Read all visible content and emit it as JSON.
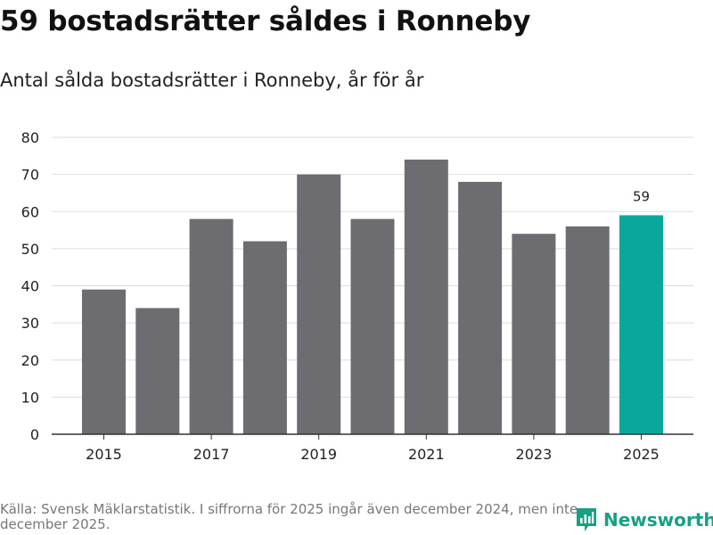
{
  "header": {
    "title": "59 bostadsrätter såldes i Ronneby",
    "subtitle": "Antal sålda bostadsrätter i Ronneby, år för år"
  },
  "footer": {
    "source": "Källa: Svensk Mäklarstatistik. I siffrorna för 2025 ingår även december 2024, men inte december 2025.",
    "brand": "Newsworthy",
    "brand_icon": "newsworthy-logo-icon"
  },
  "colors": {
    "bar": "#6d6c70",
    "highlight": "#0aa79c",
    "grid": "#dddddd",
    "axis": "#333333",
    "brand": "#16a085"
  },
  "chart_data": {
    "type": "bar",
    "title": "59 bostadsrätter såldes i Ronneby",
    "subtitle": "Antal sålda bostadsrätter i Ronneby, år för år",
    "categories": [
      "2015",
      "2016",
      "2017",
      "2018",
      "2019",
      "2020",
      "2021",
      "2022",
      "2023",
      "2024",
      "2025"
    ],
    "values": [
      39,
      34,
      58,
      52,
      70,
      58,
      74,
      68,
      54,
      56,
      59
    ],
    "x_tick_labels": [
      "2015",
      "2017",
      "2019",
      "2021",
      "2023",
      "2025"
    ],
    "y_ticks": [
      0,
      10,
      20,
      30,
      40,
      50,
      60,
      70,
      80
    ],
    "ylim": [
      0,
      80
    ],
    "grid": true,
    "highlight_category": "2025",
    "annotations": [
      {
        "category": "2025",
        "label": "59"
      }
    ],
    "xlabel": "",
    "ylabel": ""
  }
}
